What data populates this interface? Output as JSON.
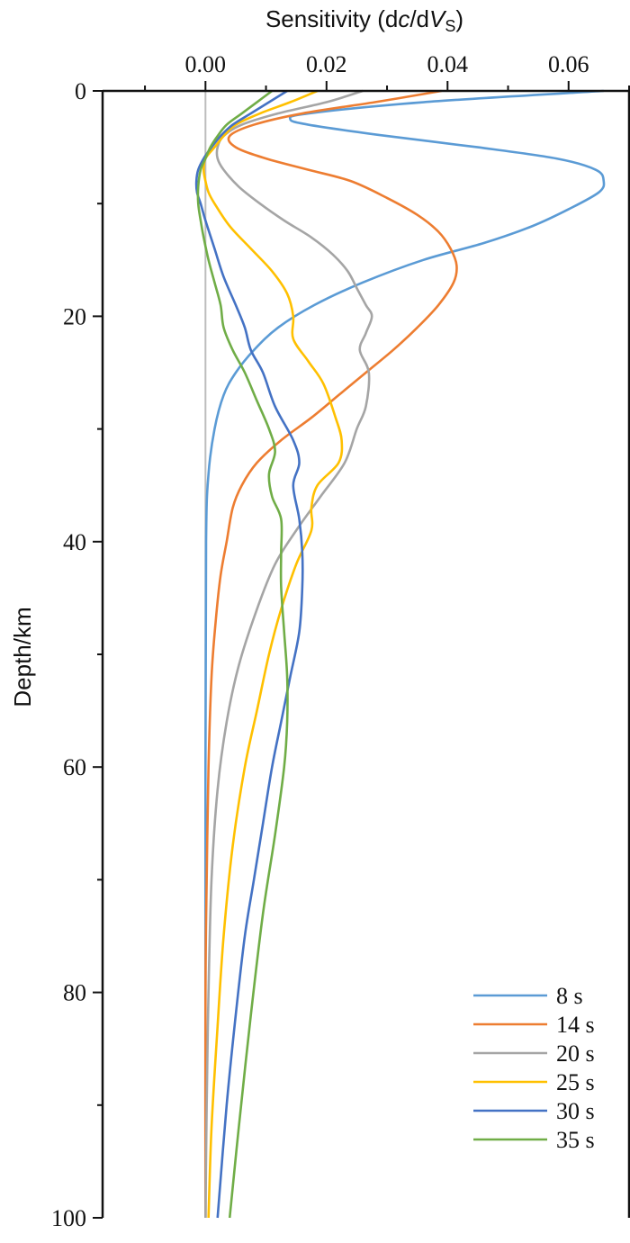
{
  "chart_data": {
    "type": "line",
    "xlabel": "Sensitivity (dc/dVS)",
    "xlabel_parts": {
      "a": "Sensitivity (d",
      "b": "c",
      "c": "/d",
      "d": "V",
      "e": "S",
      "f": ")"
    },
    "ylabel": "Depth/km",
    "xlim": [
      -0.017,
      0.07
    ],
    "ylim": [
      0,
      100
    ],
    "x_ticks": [
      "0.00",
      "0.02",
      "0.04",
      "0.06"
    ],
    "x_tick_values": [
      0,
      0.02,
      0.04,
      0.06
    ],
    "y_ticks": [
      "0",
      "20",
      "40",
      "60",
      "80",
      "100"
    ],
    "y_tick_values": [
      0,
      20,
      40,
      60,
      80,
      100
    ],
    "y_inverted": true,
    "grid": false,
    "legend_position": "bottom-right",
    "series": [
      {
        "name": "8 s",
        "color": "#5B9BD5",
        "points": [
          [
            0.0658,
            0
          ],
          [
            0.036,
            1
          ],
          [
            0.017,
            2
          ],
          [
            0.014,
            2.5
          ],
          [
            0.017,
            3
          ],
          [
            0.03,
            4
          ],
          [
            0.045,
            5
          ],
          [
            0.058,
            6
          ],
          [
            0.0645,
            7
          ],
          [
            0.0658,
            8
          ],
          [
            0.065,
            9
          ],
          [
            0.06,
            10.5
          ],
          [
            0.054,
            12
          ],
          [
            0.046,
            13.5
          ],
          [
            0.036,
            15
          ],
          [
            0.026,
            17
          ],
          [
            0.018,
            19
          ],
          [
            0.012,
            21
          ],
          [
            0.008,
            23
          ],
          [
            0.005,
            25
          ],
          [
            0.003,
            27
          ],
          [
            0.0015,
            30
          ],
          [
            0.0005,
            34
          ],
          [
            0.0001,
            40
          ],
          [
            0,
            60
          ],
          [
            0,
            100
          ]
        ]
      },
      {
        "name": "14 s",
        "color": "#ED7D31",
        "points": [
          [
            0.039,
            0
          ],
          [
            0.028,
            1
          ],
          [
            0.016,
            2
          ],
          [
            0.008,
            3
          ],
          [
            0.004,
            4
          ],
          [
            0.005,
            5
          ],
          [
            0.01,
            6
          ],
          [
            0.017,
            7
          ],
          [
            0.024,
            8
          ],
          [
            0.03,
            9.5
          ],
          [
            0.035,
            11
          ],
          [
            0.0385,
            12.5
          ],
          [
            0.0405,
            14
          ],
          [
            0.0415,
            15.5
          ],
          [
            0.041,
            17
          ],
          [
            0.0385,
            19
          ],
          [
            0.035,
            21
          ],
          [
            0.031,
            23
          ],
          [
            0.0265,
            25
          ],
          [
            0.022,
            27
          ],
          [
            0.0175,
            29
          ],
          [
            0.0125,
            31
          ],
          [
            0.0085,
            33
          ],
          [
            0.006,
            35
          ],
          [
            0.0045,
            37
          ],
          [
            0.0035,
            40
          ],
          [
            0.0025,
            43
          ],
          [
            0.0017,
            47
          ],
          [
            0.001,
            52
          ],
          [
            0.0005,
            60
          ],
          [
            0.0002,
            70
          ],
          [
            0,
            80
          ],
          [
            0,
            100
          ]
        ]
      },
      {
        "name": "20 s",
        "color": "#A5A5A5",
        "points": [
          [
            0.026,
            0
          ],
          [
            0.02,
            1
          ],
          [
            0.012,
            2
          ],
          [
            0.006,
            3
          ],
          [
            0.003,
            4
          ],
          [
            0.002,
            5
          ],
          [
            0.002,
            6
          ],
          [
            0.003,
            7
          ],
          [
            0.0055,
            8.5
          ],
          [
            0.009,
            10
          ],
          [
            0.013,
            11.5
          ],
          [
            0.0175,
            13
          ],
          [
            0.021,
            14.5
          ],
          [
            0.0235,
            16
          ],
          [
            0.025,
            17.5
          ],
          [
            0.0265,
            19
          ],
          [
            0.0275,
            20
          ],
          [
            0.0265,
            21.5
          ],
          [
            0.0255,
            23
          ],
          [
            0.027,
            25
          ],
          [
            0.0265,
            28
          ],
          [
            0.025,
            30
          ],
          [
            0.023,
            33
          ],
          [
            0.019,
            36
          ],
          [
            0.015,
            39
          ],
          [
            0.0115,
            42
          ],
          [
            0.0085,
            46
          ],
          [
            0.0055,
            51
          ],
          [
            0.0035,
            56
          ],
          [
            0.002,
            62
          ],
          [
            0.001,
            70
          ],
          [
            0.0005,
            80
          ],
          [
            0.0002,
            90
          ],
          [
            0,
            100
          ]
        ]
      },
      {
        "name": "25 s",
        "color": "#FFC000",
        "points": [
          [
            0.0185,
            0
          ],
          [
            0.014,
            1
          ],
          [
            0.009,
            2
          ],
          [
            0.005,
            3
          ],
          [
            0.003,
            4
          ],
          [
            0.0015,
            5
          ],
          [
            0,
            6
          ],
          [
            -0.0003,
            7
          ],
          [
            0,
            8
          ],
          [
            0.0005,
            9
          ],
          [
            0.0015,
            10
          ],
          [
            0.004,
            12
          ],
          [
            0.0075,
            14
          ],
          [
            0.011,
            16
          ],
          [
            0.0135,
            18
          ],
          [
            0.0145,
            20
          ],
          [
            0.0145,
            22
          ],
          [
            0.017,
            24
          ],
          [
            0.0195,
            26
          ],
          [
            0.0215,
            29
          ],
          [
            0.0225,
            31
          ],
          [
            0.022,
            33
          ],
          [
            0.0185,
            35
          ],
          [
            0.0175,
            37
          ],
          [
            0.0175,
            39
          ],
          [
            0.015,
            42
          ],
          [
            0.0125,
            46
          ],
          [
            0.0105,
            50
          ],
          [
            0.0085,
            55
          ],
          [
            0.0065,
            60
          ],
          [
            0.0045,
            67
          ],
          [
            0.003,
            75
          ],
          [
            0.002,
            83
          ],
          [
            0.001,
            92
          ],
          [
            0.0005,
            100
          ]
        ]
      },
      {
        "name": "30 s",
        "color": "#4472C4",
        "points": [
          [
            0.0135,
            0
          ],
          [
            0.0105,
            1
          ],
          [
            0.0075,
            2
          ],
          [
            0.0045,
            3
          ],
          [
            0.0025,
            4
          ],
          [
            0.001,
            5
          ],
          [
            -0.0003,
            6
          ],
          [
            -0.0012,
            7
          ],
          [
            -0.0015,
            8
          ],
          [
            -0.0014,
            9
          ],
          [
            -0.0008,
            10
          ],
          [
            0,
            11.5
          ],
          [
            0.0015,
            14
          ],
          [
            0.003,
            16.5
          ],
          [
            0.005,
            19
          ],
          [
            0.0065,
            21
          ],
          [
            0.0075,
            23
          ],
          [
            0.0095,
            25
          ],
          [
            0.0115,
            28
          ],
          [
            0.0145,
            31
          ],
          [
            0.0155,
            33
          ],
          [
            0.0145,
            35
          ],
          [
            0.0155,
            38
          ],
          [
            0.016,
            41
          ],
          [
            0.016,
            44
          ],
          [
            0.0155,
            48
          ],
          [
            0.014,
            52
          ],
          [
            0.0125,
            56
          ],
          [
            0.011,
            60
          ],
          [
            0.0095,
            65
          ],
          [
            0.008,
            70
          ],
          [
            0.0065,
            75
          ],
          [
            0.005,
            82
          ],
          [
            0.0035,
            90
          ],
          [
            0.002,
            100
          ]
        ]
      },
      {
        "name": "35 s",
        "color": "#70AD47",
        "points": [
          [
            0.011,
            0
          ],
          [
            0.0085,
            1
          ],
          [
            0.006,
            2
          ],
          [
            0.0035,
            3
          ],
          [
            0.002,
            4
          ],
          [
            0.0008,
            5
          ],
          [
            0,
            6
          ],
          [
            -0.0008,
            7
          ],
          [
            -0.0012,
            8.5
          ],
          [
            -0.0012,
            10
          ],
          [
            -0.0008,
            11.5
          ],
          [
            -0.0003,
            13
          ],
          [
            0.0005,
            15
          ],
          [
            0.0015,
            17
          ],
          [
            0.0025,
            19
          ],
          [
            0.003,
            21
          ],
          [
            0.0045,
            23
          ],
          [
            0.0065,
            25
          ],
          [
            0.0085,
            27.5
          ],
          [
            0.0105,
            30
          ],
          [
            0.0115,
            32
          ],
          [
            0.0105,
            34
          ],
          [
            0.011,
            36
          ],
          [
            0.0125,
            38
          ],
          [
            0.0125,
            41
          ],
          [
            0.0125,
            44
          ],
          [
            0.013,
            48
          ],
          [
            0.0135,
            52
          ],
          [
            0.0135,
            56
          ],
          [
            0.013,
            60
          ],
          [
            0.0115,
            66
          ],
          [
            0.0095,
            73
          ],
          [
            0.0075,
            82
          ],
          [
            0.0055,
            92
          ],
          [
            0.004,
            100
          ]
        ]
      }
    ]
  }
}
